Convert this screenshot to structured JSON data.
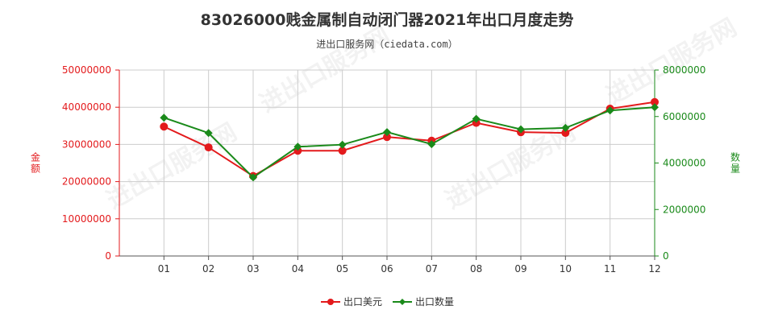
{
  "title": "83026000贱金属制自动闭门器2021年出口月度走势",
  "subtitle": "进出口服务网（ciedata.com）",
  "watermark": "进出口服务网",
  "colors": {
    "amount": "#e31a1c",
    "quantity": "#1a8a1a",
    "grid": "#cccccc",
    "axis": "#555555"
  },
  "chart_data": {
    "type": "line",
    "categories": [
      "01",
      "02",
      "03",
      "04",
      "05",
      "06",
      "07",
      "08",
      "09",
      "10",
      "11",
      "12"
    ],
    "y_left": {
      "label": "金额",
      "range": [
        0,
        50000000
      ],
      "ticks": [
        "0",
        "10000000",
        "20000000",
        "30000000",
        "40000000",
        "50000000"
      ]
    },
    "y_right": {
      "label": "数量",
      "range": [
        0,
        8000000
      ],
      "ticks": [
        "0",
        "2000000",
        "4000000",
        "6000000",
        "8000000"
      ]
    },
    "series": [
      {
        "name": "出口美元",
        "axis": "left",
        "color": "#e31a1c",
        "values": [
          34800000,
          29200000,
          21500000,
          28300000,
          28300000,
          32000000,
          31000000,
          35800000,
          33300000,
          33100000,
          39600000,
          41400000
        ]
      },
      {
        "name": "出口数量",
        "axis": "right",
        "color": "#1a8a1a",
        "values": [
          5950000,
          5290000,
          3380000,
          4700000,
          4790000,
          5330000,
          4810000,
          5900000,
          5450000,
          5510000,
          6260000,
          6400000
        ]
      }
    ],
    "grid": true,
    "legend_position": "bottom-center"
  }
}
